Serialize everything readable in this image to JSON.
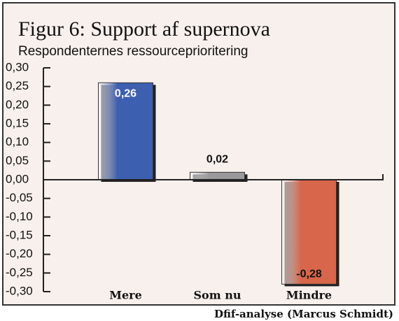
{
  "chart_data": {
    "type": "bar",
    "title": "Figur 6: Support af supernova",
    "subtitle": "Respondenternes ressourceprioritering",
    "source": "Dfif-analyse (Marcus Schmidt)",
    "categories": [
      "Mere",
      "Som nu",
      "Mindre"
    ],
    "values": [
      0.26,
      0.02,
      -0.28
    ],
    "value_labels": [
      "0,26",
      "0,02",
      "-0,28"
    ],
    "colors": [
      "#3d5fb0",
      "#9a9a9a",
      "#d8664a"
    ],
    "ylim": [
      -0.3,
      0.3
    ],
    "yticks": [
      {
        "value": 0.3,
        "label": "0,30"
      },
      {
        "value": 0.25,
        "label": "0,25"
      },
      {
        "value": 0.2,
        "label": "0,20"
      },
      {
        "value": 0.15,
        "label": "0,15"
      },
      {
        "value": 0.1,
        "label": "0,10"
      },
      {
        "value": 0.05,
        "label": "0,05"
      },
      {
        "value": 0.0,
        "label": "0,00"
      },
      {
        "value": -0.05,
        "label": "-0,05"
      },
      {
        "value": -0.1,
        "label": "-0,10"
      },
      {
        "value": -0.15,
        "label": "-0,15"
      },
      {
        "value": -0.2,
        "label": "-0,20"
      },
      {
        "value": -0.25,
        "label": "-0,25"
      },
      {
        "value": -0.3,
        "label": "-0,30"
      }
    ],
    "grid": false
  }
}
